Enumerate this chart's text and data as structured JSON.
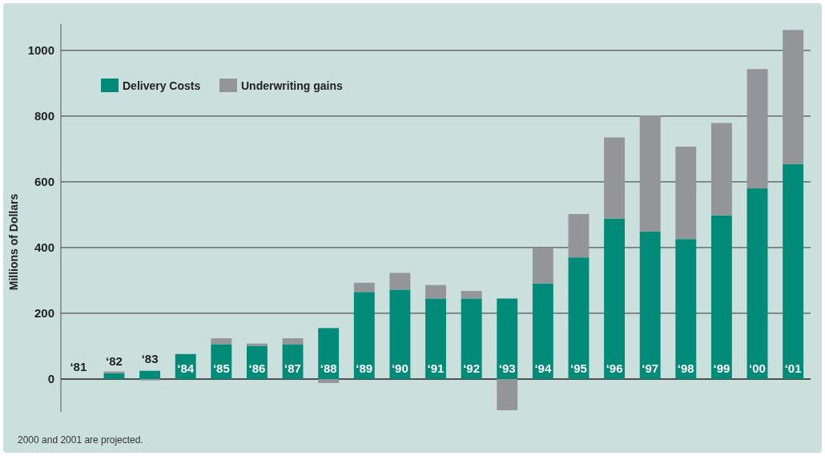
{
  "chart_data": {
    "type": "bar",
    "stacked": true,
    "ylabel": "Millions of Dollars",
    "categories": [
      "‘81",
      "‘82",
      "‘83",
      "‘84",
      "‘85",
      "‘86",
      "‘87",
      "‘88",
      "‘89",
      "‘90",
      "‘91",
      "‘92",
      "‘93",
      "‘94",
      "‘95",
      "‘96",
      "‘97",
      "‘98",
      "‘99",
      "‘00",
      "‘01"
    ],
    "series": [
      {
        "name": "Delivery Costs",
        "color": "#008a78",
        "values": [
          null,
          18,
          25,
          76,
          106,
          101,
          106,
          155,
          265,
          272,
          245,
          245,
          245,
          291,
          370,
          488,
          449,
          426,
          498,
          580,
          654
        ]
      },
      {
        "name": "Underwriting gains",
        "color": "#939598",
        "values": [
          null,
          5,
          -4,
          0,
          18,
          7,
          18,
          -12,
          28,
          51,
          41,
          23,
          -95,
          107,
          132,
          247,
          353,
          281,
          281,
          363,
          408
        ]
      }
    ],
    "ylim": [
      -100,
      1080
    ],
    "yticks": [
      0,
      200,
      400,
      600,
      800,
      1000
    ],
    "grid": "y",
    "legend": "top left",
    "annotations": [
      "2000 and 2001 are projected."
    ]
  }
}
